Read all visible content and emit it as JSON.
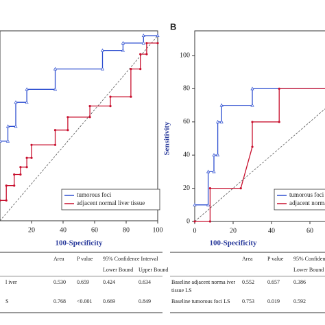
{
  "chart_data": [
    {
      "type": "line",
      "xlabel": "100-Specificity",
      "xlim": [
        0,
        100
      ],
      "ylim": [
        0,
        100
      ],
      "xticks": [
        20,
        40,
        60,
        80,
        100
      ],
      "series": [
        {
          "name": "tumorous foci",
          "color": "#2e4fd0",
          "x": [
            0,
            5,
            5,
            10,
            10,
            17,
            17,
            35,
            35,
            65,
            65,
            78,
            78,
            91,
            91,
            100
          ],
          "values": [
            43,
            43,
            51,
            51,
            64,
            64,
            71,
            71,
            82,
            82,
            92,
            92,
            96,
            96,
            100,
            100
          ]
        },
        {
          "name": "adjacent normal liver tissue",
          "color": "#c8102e",
          "x": [
            0,
            4,
            4,
            9,
            9,
            13,
            13,
            17,
            17,
            20,
            20,
            35,
            35,
            43,
            43,
            57,
            57,
            70,
            70,
            83,
            83,
            89,
            89,
            93,
            93,
            100
          ],
          "values": [
            11,
            11,
            19,
            19,
            25,
            25,
            29,
            29,
            34,
            34,
            41,
            41,
            49,
            49,
            56,
            56,
            62,
            62,
            67,
            67,
            82,
            82,
            90,
            90,
            96,
            96
          ]
        }
      ]
    },
    {
      "type": "line",
      "panel": "B",
      "xlabel": "100-Specificity",
      "ylabel": "Sensitivity",
      "xlim": [
        0,
        100
      ],
      "ylim": [
        0,
        100
      ],
      "xticks": [
        0,
        20,
        40,
        60
      ],
      "yticks": [
        0,
        20,
        40,
        60,
        80,
        100
      ],
      "series": [
        {
          "name": "tumorous foci",
          "color": "#2e4fd0",
          "x": [
            0,
            7,
            7,
            10,
            10,
            12,
            12,
            14,
            14,
            30,
            30,
            72,
            72,
            100
          ],
          "values": [
            10,
            10,
            30,
            30,
            40,
            40,
            60,
            60,
            70,
            70,
            80,
            80,
            90,
            90
          ]
        },
        {
          "name": "adjacent normal liver tissue",
          "color": "#c8102e",
          "x": [
            0,
            8,
            8,
            24,
            30,
            30,
            44,
            44,
            100
          ],
          "values": [
            0,
            0,
            20,
            20,
            45,
            60,
            60,
            80,
            80
          ]
        }
      ]
    }
  ],
  "tables": [
    {
      "header": [
        "Area",
        "P value",
        "95% Confidence Interval"
      ],
      "subheader": [
        "Lower Bound",
        "Upper Bound"
      ],
      "rows": [
        [
          "l iver",
          "0.530",
          "0.659",
          "0.424",
          "0.634"
        ],
        [
          "S",
          "0.768",
          "<0.001",
          "0.669",
          "0.849"
        ]
      ]
    },
    {
      "header": [
        "Area",
        "P value",
        "95% Confidence"
      ],
      "subheader": [
        "Lower Bound"
      ],
      "rows": [
        [
          "Baseline adjacent norma iver tissue LS",
          "0.552",
          "0.657",
          "0.386"
        ],
        [
          "Baseline tumorous foci LS",
          "0.753",
          "0.019",
          "0.592"
        ]
      ]
    }
  ]
}
